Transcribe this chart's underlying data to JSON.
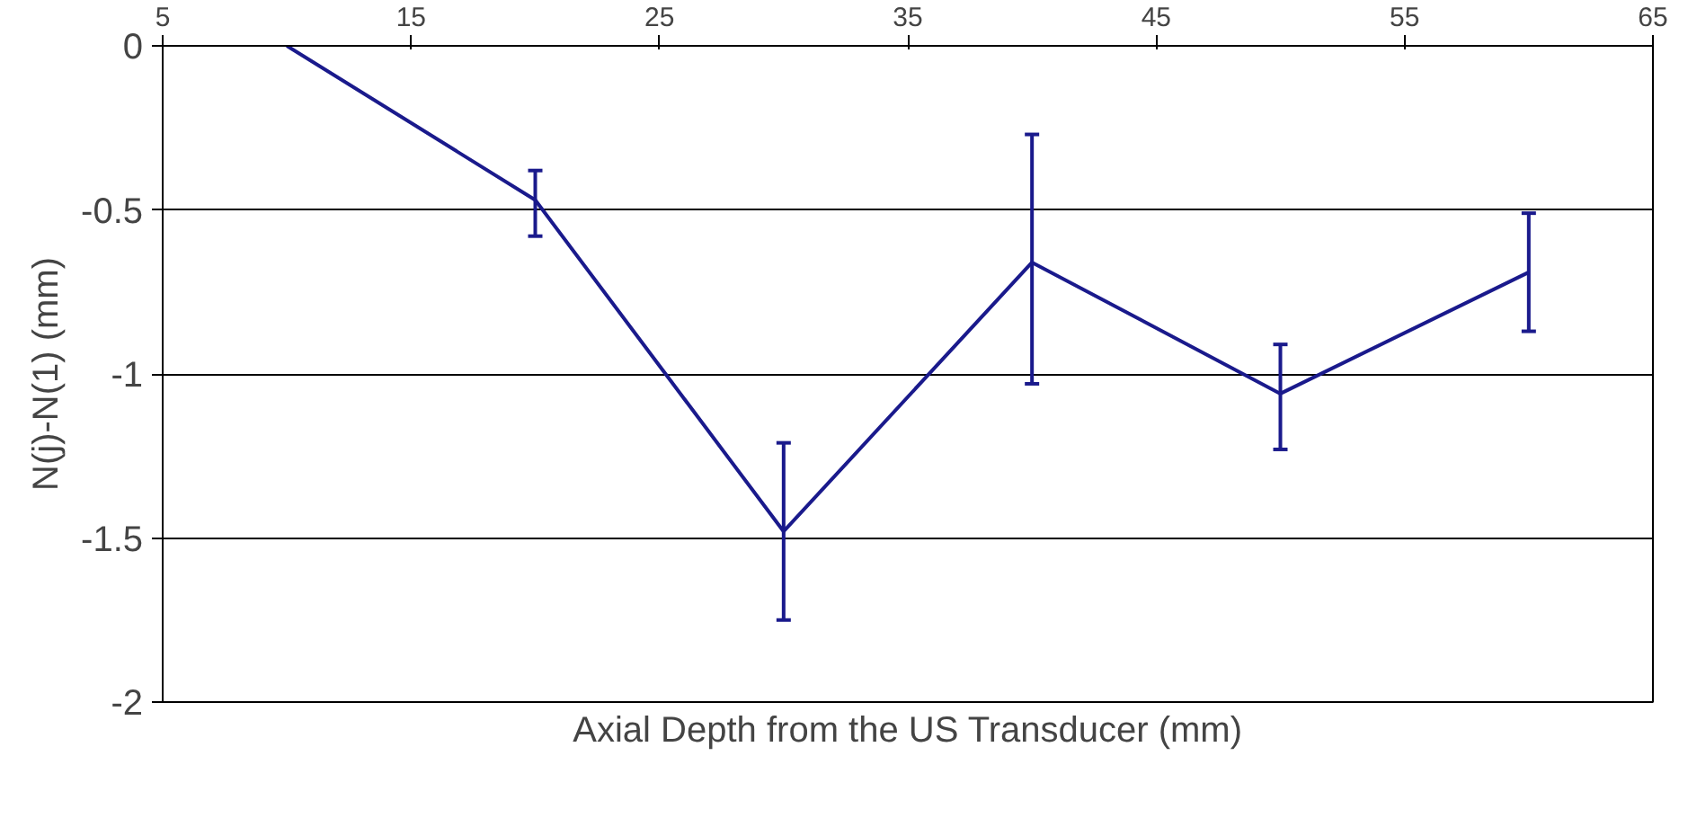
{
  "chart_data": {
    "type": "line",
    "xlabel": "Axial Depth from the US Transducer (mm)",
    "ylabel": "N(j)-N(1) (mm)",
    "x": [
      10,
      20,
      30,
      40,
      50,
      60
    ],
    "series": [
      {
        "color": "#1a1a8c",
        "values": [
          0,
          -0.47,
          -1.48,
          -0.66,
          -1.06,
          -0.69
        ],
        "errors": [
          null,
          [
            -0.58,
            -0.38
          ],
          [
            -1.75,
            -1.21
          ],
          [
            -1.03,
            -0.27
          ],
          [
            -1.23,
            -0.91
          ],
          [
            -0.87,
            -0.51
          ]
        ]
      }
    ],
    "xlim": [
      5,
      65
    ],
    "xticks": [
      5,
      15,
      25,
      35,
      45,
      55,
      65
    ],
    "ylim": [
      -2,
      0
    ],
    "yticks": [
      0,
      -0.5,
      -1,
      -1.5,
      -2
    ],
    "grid": "y",
    "marker": "none",
    "line_style": "solid"
  }
}
